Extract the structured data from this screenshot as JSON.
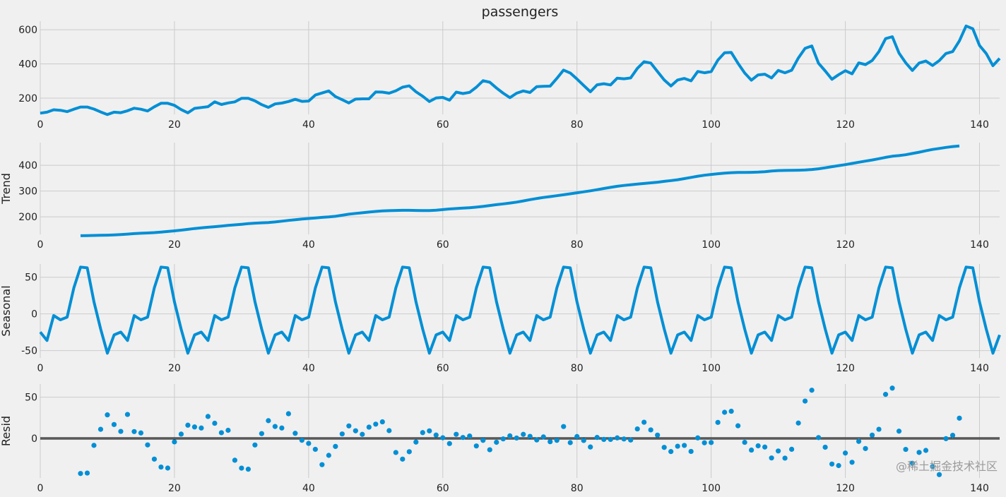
{
  "chart_data": {
    "type": "line",
    "title": "passengers",
    "method": "additive seasonal decomposition, period 12 (trend = centered 2x12 moving average)",
    "period": 12,
    "x": {
      "start": 0,
      "end": 143,
      "ticks": [
        0,
        20,
        40,
        60,
        80,
        100,
        120,
        140
      ]
    },
    "observed": [
      112,
      118,
      132,
      129,
      121,
      135,
      148,
      148,
      136,
      119,
      104,
      118,
      115,
      126,
      141,
      135,
      125,
      149,
      170,
      170,
      158,
      133,
      114,
      140,
      145,
      150,
      178,
      163,
      172,
      178,
      199,
      199,
      184,
      162,
      146,
      166,
      171,
      180,
      193,
      181,
      183,
      218,
      230,
      242,
      209,
      191,
      172,
      194,
      196,
      196,
      236,
      235,
      229,
      243,
      264,
      272,
      237,
      211,
      180,
      201,
      204,
      188,
      235,
      227,
      234,
      264,
      302,
      293,
      259,
      229,
      203,
      229,
      242,
      233,
      267,
      269,
      270,
      315,
      364,
      347,
      312,
      274,
      237,
      278,
      284,
      277,
      317,
      313,
      318,
      374,
      413,
      405,
      355,
      306,
      271,
      306,
      315,
      301,
      356,
      348,
      355,
      422,
      465,
      467,
      404,
      347,
      305,
      336,
      340,
      318,
      362,
      348,
      363,
      435,
      491,
      505,
      404,
      359,
      310,
      337,
      360,
      342,
      406,
      396,
      420,
      472,
      548,
      559,
      463,
      407,
      362,
      405,
      417,
      391,
      419,
      461,
      472,
      535,
      622,
      606,
      508,
      461,
      390,
      432
    ],
    "seasonal_pattern": [
      -24.75,
      -36.19,
      -2.24,
      -8.04,
      -4.51,
      35.4,
      63.83,
      62.82,
      16.52,
      -20.64,
      -53.59,
      -28.62
    ],
    "panels": [
      {
        "key": "observed",
        "ylabel": "",
        "ylim": [
          105,
          650
        ],
        "yticks": [
          200,
          400,
          600
        ],
        "style": "line"
      },
      {
        "key": "trend",
        "ylabel": "Trend",
        "ylim": [
          132,
          488
        ],
        "yticks": [
          200,
          300,
          400
        ],
        "style": "line"
      },
      {
        "key": "seasonal",
        "ylabel": "Seasonal",
        "ylim": [
          -60,
          68
        ],
        "yticks": [
          -50,
          0,
          50
        ],
        "style": "line"
      },
      {
        "key": "resid",
        "ylabel": "Resid",
        "ylim": [
          -48,
          66
        ],
        "yticks": [
          0,
          50
        ],
        "style": "scatter",
        "zero_line": true
      }
    ],
    "colors": {
      "series": "#008fd5",
      "grid": "#cbcbcb",
      "background": "#f0f0f0",
      "zero_line": "#000000"
    }
  },
  "watermark": "@稀土掘金技术社区"
}
